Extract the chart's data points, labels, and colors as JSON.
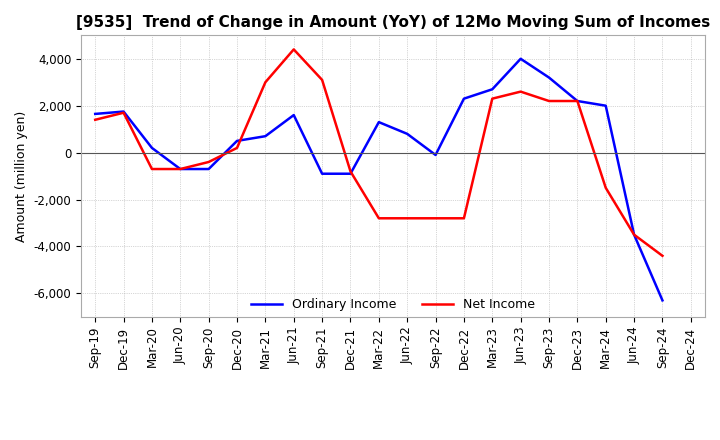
{
  "title": "[9535]  Trend of Change in Amount (YoY) of 12Mo Moving Sum of Incomes",
  "ylabel": "Amount (million yen)",
  "ylim": [
    -7000,
    5000
  ],
  "yticks": [
    -6000,
    -4000,
    -2000,
    0,
    2000,
    4000
  ],
  "x_labels": [
    "Sep-19",
    "Dec-19",
    "Mar-20",
    "Jun-20",
    "Sep-20",
    "Dec-20",
    "Mar-21",
    "Jun-21",
    "Sep-21",
    "Dec-21",
    "Mar-22",
    "Jun-22",
    "Sep-22",
    "Dec-22",
    "Mar-23",
    "Jun-23",
    "Sep-23",
    "Dec-23",
    "Mar-24",
    "Jun-24",
    "Sep-24",
    "Dec-24"
  ],
  "ordinary_income": [
    1650,
    1750,
    200,
    -700,
    -700,
    500,
    700,
    1600,
    -900,
    -900,
    1300,
    800,
    -100,
    2300,
    2700,
    4000,
    3200,
    2200,
    2000,
    -3500,
    -6300,
    null
  ],
  "net_income": [
    1400,
    1700,
    -700,
    -700,
    -400,
    200,
    3000,
    4400,
    3100,
    -800,
    -2800,
    -2800,
    -2800,
    -2800,
    2300,
    2600,
    2200,
    2200,
    -1500,
    -3500,
    -4400,
    null
  ],
  "ordinary_color": "#0000ff",
  "net_color": "#ff0000",
  "background_color": "#ffffff",
  "grid_color": "#b0b0b0",
  "title_fontsize": 11,
  "label_fontsize": 9,
  "tick_fontsize": 8.5
}
